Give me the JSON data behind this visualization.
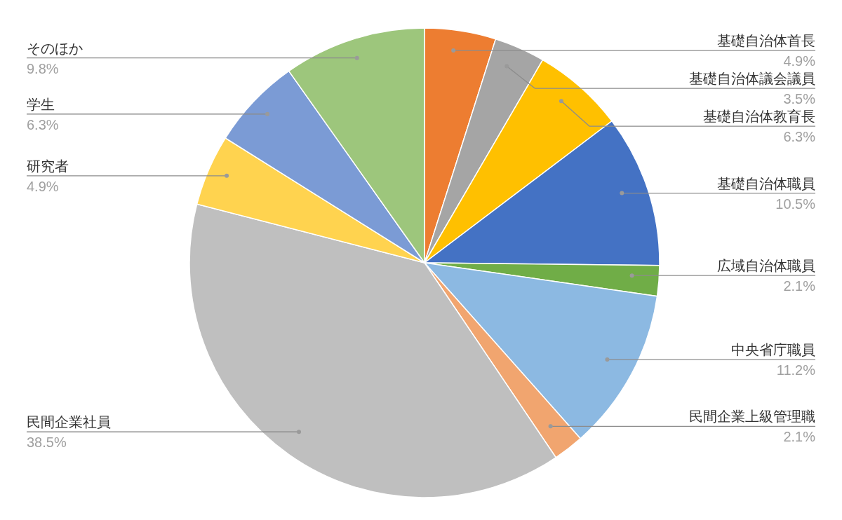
{
  "chart_data": {
    "type": "pie",
    "categories": [
      "基礎自治体首長",
      "基礎自治体議会議員",
      "基礎自治体教育長",
      "基礎自治体職員",
      "広域自治体職員",
      "中央省庁職員",
      "民間企業上級管理職",
      "民間企業社員",
      "研究者",
      "学生",
      "そのほか"
    ],
    "values": [
      4.9,
      3.5,
      6.3,
      10.5,
      2.1,
      11.2,
      2.1,
      38.5,
      4.9,
      6.3,
      9.8
    ],
    "value_labels": [
      "4.9%",
      "3.5%",
      "6.3%",
      "10.5%",
      "2.1%",
      "11.2%",
      "2.1%",
      "38.5%",
      "4.9%",
      "6.3%",
      "9.8%"
    ],
    "colors": [
      "#ed7d31",
      "#a5a5a5",
      "#ffc000",
      "#4472c4",
      "#70ad47",
      "#8cb9e2",
      "#f1a56f",
      "#bfbfbf",
      "#ffd34f",
      "#7b9bd5",
      "#9dc67c"
    ],
    "legend": false
  }
}
